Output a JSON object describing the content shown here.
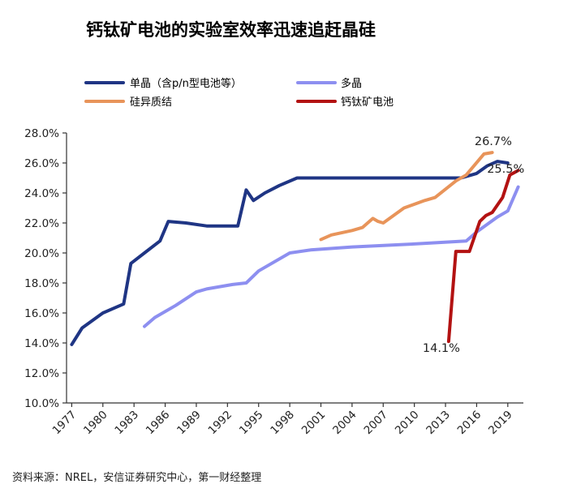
{
  "chart_data": {
    "type": "line",
    "title": "钙钛矿电池的实验室效率迅速追赶晶硅",
    "xlabel": "",
    "ylabel": "",
    "xlim": [
      1976.5,
      2020.5
    ],
    "ylim": [
      10,
      28
    ],
    "y_ticks": [
      "10.0%",
      "12.0%",
      "14.0%",
      "16.0%",
      "18.0%",
      "20.0%",
      "22.0%",
      "24.0%",
      "26.0%",
      "28.0%"
    ],
    "x_ticks": [
      "1977",
      "1980",
      "1983",
      "1986",
      "1989",
      "1992",
      "1995",
      "1998",
      "2001",
      "2004",
      "2007",
      "2010",
      "2013",
      "2016",
      "2019"
    ],
    "grid": false,
    "legend_position": "top",
    "series": [
      {
        "name": "单晶（含p/n型电池等）",
        "color": "#1f3584",
        "x": [
          1977,
          1978,
          1980,
          1982,
          1982.7,
          1984,
          1985.5,
          1986.3,
          1988,
          1990,
          1991,
          1993,
          1993.8,
          1994.5,
          1995.6,
          1997,
          1998.7,
          2000,
          2008,
          2014.5,
          2016,
          2017,
          2018,
          2019
        ],
        "y": [
          13.9,
          15,
          16,
          16.6,
          19.3,
          20,
          20.8,
          22.1,
          22,
          21.8,
          21.8,
          21.8,
          24.2,
          23.5,
          24,
          24.5,
          25,
          25,
          25,
          25,
          25.3,
          25.8,
          26.1,
          26
        ]
      },
      {
        "name": "硅异质结",
        "color": "#e8945a",
        "x": [
          2001,
          2002,
          2004,
          2005,
          2006,
          2006.5,
          2007,
          2008,
          2009,
          2011,
          2012,
          2014,
          2015,
          2016.7,
          2017.5
        ],
        "y": [
          20.9,
          21.2,
          21.5,
          21.7,
          22.3,
          22.1,
          22,
          22.5,
          23,
          23.5,
          23.7,
          24.8,
          25.2,
          26.6,
          26.7
        ]
      },
      {
        "name": "多晶",
        "color": "#8d8ff0",
        "x": [
          1984,
          1985,
          1987,
          1989,
          1990,
          1992.5,
          1993.8,
          1995,
          1998,
          2000,
          2004,
          2010,
          2015,
          2016,
          2017,
          2018,
          2019,
          2020
        ],
        "y": [
          15.1,
          15.7,
          16.5,
          17.4,
          17.6,
          17.9,
          18,
          18.8,
          20,
          20.2,
          20.4,
          20.6,
          20.8,
          21.4,
          21.9,
          22.4,
          22.8,
          24.4
        ]
      },
      {
        "name": "钙钛矿电池",
        "color": "#b31212",
        "x": [
          2013.3,
          2014,
          2014.8,
          2015.3,
          2015.8,
          2016.3,
          2016.9,
          2017.5,
          2018.5,
          2019.2,
          2020
        ],
        "y": [
          14.1,
          20.1,
          20.1,
          20.1,
          21.1,
          22.1,
          22.5,
          22.7,
          23.7,
          25.2,
          25.5
        ]
      }
    ],
    "annotations": [
      {
        "text": "26.7%",
        "x": 2017.6,
        "y": 27.2
      },
      {
        "text": "25.5%",
        "x": 2018.8,
        "y": 25.35
      },
      {
        "text": "14.1%",
        "x": 2012.6,
        "y": 13.4
      }
    ],
    "source": "资料来源：NREL，安信证券研究中心，第一财经整理"
  }
}
